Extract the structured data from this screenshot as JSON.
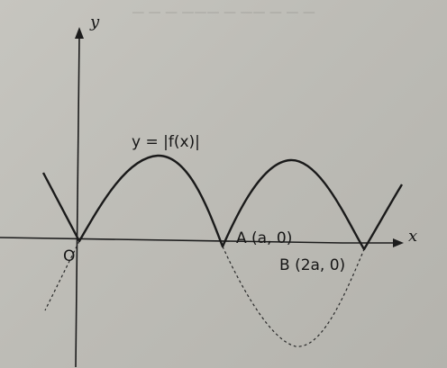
{
  "labels": {
    "y_axis": "y",
    "x_axis": "x",
    "origin": "O",
    "function": "y = |f(x)|",
    "point_a": "A (a, 0)",
    "point_b": "B (2a, 0)"
  },
  "colors": {
    "curve": "#1a1a1a",
    "axis": "#1c1c1c",
    "paper": "#c0bfb9"
  }
}
